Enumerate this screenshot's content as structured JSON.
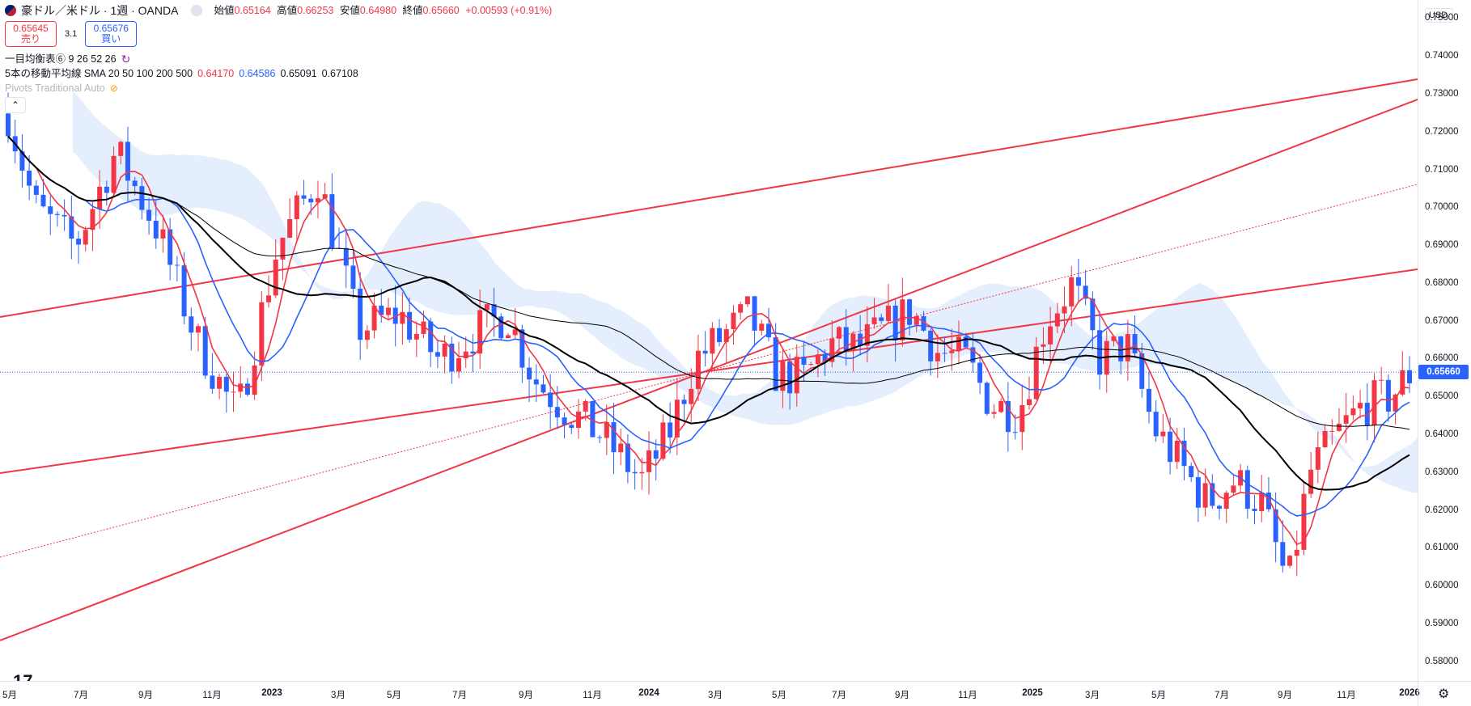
{
  "header": {
    "symbol": "豪ドル／米ドル · 1週 · OANDA",
    "open_label": "始値",
    "open": "0.65164",
    "high_label": "高値",
    "high": "0.66253",
    "low_label": "安値",
    "low": "0.64980",
    "close_label": "終値",
    "close": "0.65660",
    "change": "+0.00593 (+0.91%)"
  },
  "trade": {
    "sell_price": "0.65645",
    "sell_label": "売り",
    "spread": "3.1",
    "buy_price": "0.65676",
    "buy_label": "買い"
  },
  "indicators": {
    "ichimoku": "一目均衡表⑥ 9 26 52 26",
    "sma_name": "5本の移動平均線 SMA 20 50 100 200 500",
    "sma_values": [
      "0.64170",
      "0.64586",
      "0.65091",
      "0.67108"
    ],
    "pivots": "Pivots Traditional Auto"
  },
  "price_axis": {
    "currency": "USD",
    "ticks": [
      "0.75000",
      "0.74000",
      "0.73000",
      "0.72000",
      "0.71000",
      "0.70000",
      "0.69000",
      "0.68000",
      "0.67000",
      "0.66000",
      "0.65000",
      "0.64000",
      "0.63000",
      "0.62000",
      "0.61000",
      "0.60000",
      "0.59000",
      "0.58000"
    ],
    "current_price": "0.65660"
  },
  "time_axis": {
    "ticks": [
      "5月",
      "7月",
      "9月",
      "11月",
      "2023",
      "3月",
      "5月",
      "7月",
      "9月",
      "11月",
      "2024",
      "3月",
      "5月",
      "7月",
      "9月",
      "11月",
      "2025",
      "3月",
      "5月",
      "7月",
      "9月",
      "11月",
      "2026"
    ]
  },
  "chart_data": {
    "type": "candlestick",
    "ylim": [
      0.575,
      0.755
    ],
    "colors": {
      "up": "#f23645",
      "down": "#2962ff",
      "sma20": "#f23645",
      "sma50": "#2962ff",
      "sma100": "#000000",
      "sma200": "#000000",
      "trendline": "#f23645",
      "cloud": "#dbe8fb"
    },
    "sma_values": [
      0.6417,
      0.64586,
      0.65091,
      0.67108
    ],
    "last_close": 0.6566
  }
}
